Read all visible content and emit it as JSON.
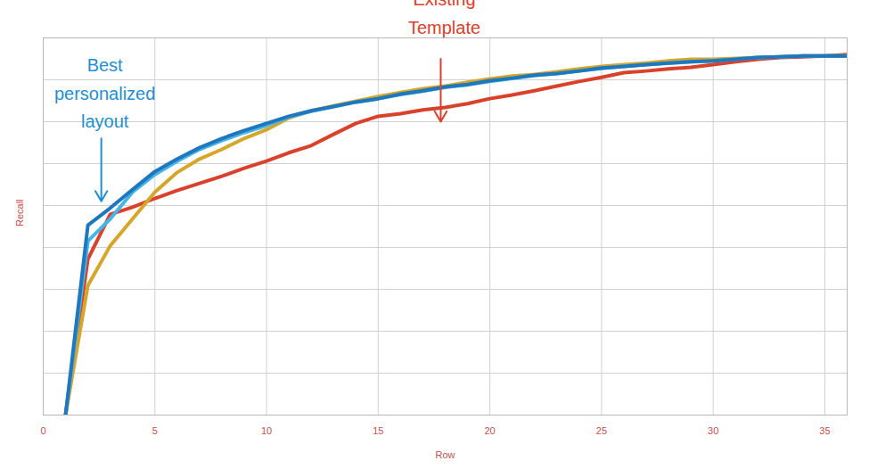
{
  "chart_data": {
    "type": "line",
    "xlabel": "Row",
    "ylabel": "Recall",
    "x": [
      1,
      2,
      3,
      4,
      5,
      6,
      7,
      8,
      9,
      10,
      11,
      12,
      13,
      14,
      15,
      16,
      17,
      18,
      19,
      20,
      21,
      22,
      23,
      24,
      25,
      26,
      27,
      28,
      29,
      30,
      31,
      32,
      33,
      34,
      35,
      36
    ],
    "series": [
      {
        "color": "#d9412b",
        "values": [
          0,
          3.72,
          4.79,
          4.96,
          5.17,
          5.36,
          5.53,
          5.7,
          5.89,
          6.06,
          6.26,
          6.43,
          6.7,
          6.96,
          7.13,
          7.19,
          7.28,
          7.34,
          7.43,
          7.55,
          7.64,
          7.74,
          7.85,
          7.96,
          8.06,
          8.17,
          8.21,
          8.26,
          8.3,
          8.36,
          8.43,
          8.49,
          8.53,
          8.55,
          8.57,
          8.6
        ]
      },
      {
        "color": "#d4a62a",
        "values": [
          0,
          3.09,
          4.04,
          4.68,
          5.32,
          5.79,
          6.11,
          6.34,
          6.6,
          6.81,
          7.09,
          7.26,
          7.38,
          7.49,
          7.6,
          7.7,
          7.79,
          7.85,
          7.94,
          8.02,
          8.09,
          8.13,
          8.19,
          8.26,
          8.32,
          8.36,
          8.4,
          8.45,
          8.49,
          8.49,
          8.51,
          8.53,
          8.55,
          8.57,
          8.57,
          8.57
        ]
      },
      {
        "color": "#45b5e8",
        "values": [
          0,
          4.15,
          4.68,
          5.32,
          5.74,
          6.06,
          6.34,
          6.55,
          6.74,
          6.91,
          7.11,
          7.25,
          7.36,
          7.47,
          7.55,
          7.65,
          7.73,
          7.82,
          7.88,
          7.96,
          8.03,
          8.1,
          8.15,
          8.21,
          8.27,
          8.32,
          8.36,
          8.4,
          8.43,
          8.45,
          8.49,
          8.53,
          8.55,
          8.57,
          8.57,
          8.57
        ]
      },
      {
        "color": "#1f78bd",
        "values": [
          0,
          4.53,
          4.94,
          5.38,
          5.81,
          6.11,
          6.38,
          6.6,
          6.79,
          6.96,
          7.13,
          7.26,
          7.36,
          7.47,
          7.55,
          7.66,
          7.74,
          7.83,
          7.89,
          7.98,
          8.04,
          8.11,
          8.15,
          8.21,
          8.28,
          8.32,
          8.36,
          8.4,
          8.43,
          8.45,
          8.49,
          8.53,
          8.55,
          8.57,
          8.57,
          8.57
        ]
      }
    ],
    "annotations": [
      {
        "text": "Best\npersonalized\nlayout",
        "x": 2.6,
        "y": 5.1,
        "color": "#1f8fd0"
      },
      {
        "text": "Existing\nTemplate",
        "x": 17.8,
        "y": 7.0,
        "color": "#d9412b"
      }
    ],
    "xlim": [
      0,
      36
    ],
    "ylim": [
      0,
      9
    ],
    "xticks": [
      0,
      5,
      10,
      15,
      20,
      25,
      30,
      35
    ],
    "yticks": [
      0,
      1,
      2,
      3,
      4,
      5,
      6,
      7,
      8,
      9
    ],
    "grid": true,
    "tick_labels": "x"
  }
}
